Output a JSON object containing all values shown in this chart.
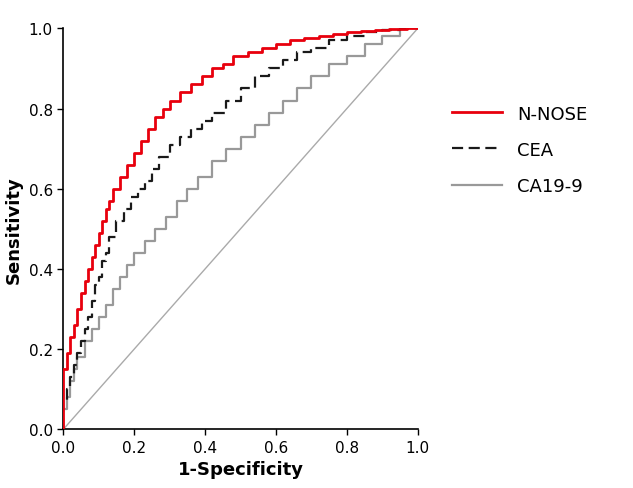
{
  "title": "",
  "xlabel": "1-Specificity",
  "ylabel": "Sensitivity",
  "xlim": [
    0.0,
    1.0
  ],
  "ylim": [
    0.0,
    1.0
  ],
  "xticks": [
    0.0,
    0.2,
    0.4,
    0.6,
    0.8,
    1.0
  ],
  "yticks": [
    0.0,
    0.2,
    0.4,
    0.6,
    0.8,
    1.0
  ],
  "legend_labels": [
    "N-NOSE",
    "CEA",
    "CA19-9"
  ],
  "nnose_color": "#e8000d",
  "cea_color": "#1a1a1a",
  "ca199_color": "#999999",
  "diag_color": "#aaaaaa",
  "background_color": "#ffffff",
  "nnose_x": [
    0.0,
    0.0,
    0.01,
    0.01,
    0.02,
    0.02,
    0.03,
    0.03,
    0.04,
    0.04,
    0.05,
    0.05,
    0.06,
    0.06,
    0.07,
    0.07,
    0.08,
    0.08,
    0.09,
    0.09,
    0.1,
    0.1,
    0.11,
    0.11,
    0.12,
    0.12,
    0.13,
    0.13,
    0.14,
    0.14,
    0.16,
    0.16,
    0.18,
    0.18,
    0.2,
    0.2,
    0.22,
    0.22,
    0.24,
    0.24,
    0.26,
    0.26,
    0.28,
    0.28,
    0.3,
    0.3,
    0.33,
    0.33,
    0.36,
    0.36,
    0.39,
    0.39,
    0.42,
    0.42,
    0.45,
    0.45,
    0.48,
    0.48,
    0.52,
    0.52,
    0.56,
    0.56,
    0.6,
    0.6,
    0.64,
    0.64,
    0.68,
    0.68,
    0.72,
    0.72,
    0.76,
    0.76,
    0.8,
    0.8,
    0.84,
    0.84,
    0.88,
    0.88,
    0.92,
    0.92,
    0.95,
    0.95,
    0.97,
    0.97,
    1.0
  ],
  "nnose_y": [
    0.0,
    0.15,
    0.15,
    0.19,
    0.19,
    0.23,
    0.23,
    0.26,
    0.26,
    0.3,
    0.3,
    0.34,
    0.34,
    0.37,
    0.37,
    0.4,
    0.4,
    0.43,
    0.43,
    0.46,
    0.46,
    0.49,
    0.49,
    0.52,
    0.52,
    0.55,
    0.55,
    0.57,
    0.57,
    0.6,
    0.6,
    0.63,
    0.63,
    0.66,
    0.66,
    0.69,
    0.69,
    0.72,
    0.72,
    0.75,
    0.75,
    0.78,
    0.78,
    0.8,
    0.8,
    0.82,
    0.82,
    0.84,
    0.84,
    0.86,
    0.86,
    0.88,
    0.88,
    0.9,
    0.9,
    0.91,
    0.91,
    0.93,
    0.93,
    0.94,
    0.94,
    0.95,
    0.95,
    0.96,
    0.96,
    0.97,
    0.97,
    0.975,
    0.975,
    0.98,
    0.98,
    0.985,
    0.985,
    0.99,
    0.99,
    0.993,
    0.993,
    0.996,
    0.996,
    0.998,
    0.998,
    0.999,
    0.999,
    1.0,
    1.0
  ],
  "cea_x": [
    0.0,
    0.0,
    0.01,
    0.01,
    0.02,
    0.02,
    0.03,
    0.03,
    0.04,
    0.04,
    0.05,
    0.05,
    0.06,
    0.06,
    0.07,
    0.07,
    0.08,
    0.08,
    0.09,
    0.09,
    0.1,
    0.1,
    0.11,
    0.11,
    0.12,
    0.12,
    0.13,
    0.13,
    0.15,
    0.15,
    0.17,
    0.17,
    0.19,
    0.19,
    0.21,
    0.21,
    0.23,
    0.23,
    0.25,
    0.25,
    0.27,
    0.27,
    0.3,
    0.3,
    0.33,
    0.33,
    0.36,
    0.36,
    0.39,
    0.39,
    0.42,
    0.42,
    0.46,
    0.46,
    0.5,
    0.5,
    0.54,
    0.54,
    0.58,
    0.58,
    0.62,
    0.62,
    0.66,
    0.66,
    0.7,
    0.7,
    0.75,
    0.75,
    0.8,
    0.8,
    0.85,
    0.85,
    0.9,
    0.9,
    0.95,
    0.95,
    1.0
  ],
  "cea_y": [
    0.0,
    0.07,
    0.07,
    0.1,
    0.1,
    0.13,
    0.13,
    0.16,
    0.16,
    0.19,
    0.19,
    0.22,
    0.22,
    0.25,
    0.25,
    0.28,
    0.28,
    0.32,
    0.32,
    0.36,
    0.36,
    0.38,
    0.38,
    0.42,
    0.42,
    0.44,
    0.44,
    0.48,
    0.48,
    0.52,
    0.52,
    0.55,
    0.55,
    0.58,
    0.58,
    0.6,
    0.6,
    0.62,
    0.62,
    0.65,
    0.65,
    0.68,
    0.68,
    0.71,
    0.71,
    0.73,
    0.73,
    0.75,
    0.75,
    0.77,
    0.77,
    0.79,
    0.79,
    0.82,
    0.82,
    0.85,
    0.85,
    0.88,
    0.88,
    0.9,
    0.9,
    0.92,
    0.92,
    0.94,
    0.94,
    0.95,
    0.95,
    0.97,
    0.97,
    0.98,
    0.98,
    0.99,
    0.99,
    0.995,
    0.995,
    1.0,
    1.0
  ],
  "ca199_x": [
    0.0,
    0.0,
    0.01,
    0.01,
    0.02,
    0.02,
    0.03,
    0.03,
    0.04,
    0.04,
    0.06,
    0.06,
    0.08,
    0.08,
    0.1,
    0.1,
    0.12,
    0.12,
    0.14,
    0.14,
    0.16,
    0.16,
    0.18,
    0.18,
    0.2,
    0.2,
    0.23,
    0.23,
    0.26,
    0.26,
    0.29,
    0.29,
    0.32,
    0.32,
    0.35,
    0.35,
    0.38,
    0.38,
    0.42,
    0.42,
    0.46,
    0.46,
    0.5,
    0.5,
    0.54,
    0.54,
    0.58,
    0.58,
    0.62,
    0.62,
    0.66,
    0.66,
    0.7,
    0.7,
    0.75,
    0.75,
    0.8,
    0.8,
    0.85,
    0.85,
    0.9,
    0.9,
    0.95,
    0.95,
    1.0
  ],
  "ca199_y": [
    0.0,
    0.05,
    0.05,
    0.08,
    0.08,
    0.12,
    0.12,
    0.15,
    0.15,
    0.18,
    0.18,
    0.22,
    0.22,
    0.25,
    0.25,
    0.28,
    0.28,
    0.31,
    0.31,
    0.35,
    0.35,
    0.38,
    0.38,
    0.41,
    0.41,
    0.44,
    0.44,
    0.47,
    0.47,
    0.5,
    0.5,
    0.53,
    0.53,
    0.57,
    0.57,
    0.6,
    0.6,
    0.63,
    0.63,
    0.67,
    0.67,
    0.7,
    0.7,
    0.73,
    0.73,
    0.76,
    0.76,
    0.79,
    0.79,
    0.82,
    0.82,
    0.85,
    0.85,
    0.88,
    0.88,
    0.91,
    0.91,
    0.93,
    0.93,
    0.96,
    0.96,
    0.98,
    0.98,
    1.0,
    1.0
  ],
  "fontsize_labels": 13,
  "fontsize_ticks": 11,
  "fontsize_legend": 13,
  "linewidth_nnose": 2.0,
  "linewidth_cea": 1.6,
  "linewidth_ca199": 1.6,
  "linewidth_diag": 1.0
}
